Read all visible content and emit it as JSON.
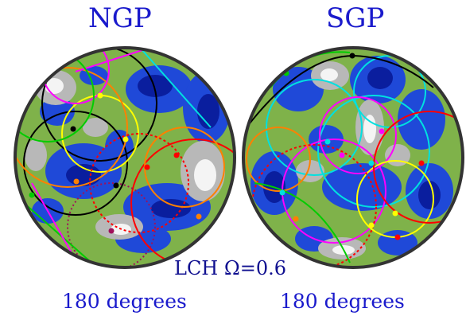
{
  "figure": {
    "panels": [
      {
        "title": "NGP",
        "extent": "180 degrees"
      },
      {
        "title": "SGP",
        "extent": "180 degrees"
      }
    ],
    "caption": "LCH Ω=0.6"
  },
  "colors": {
    "background": "#ffffff",
    "label_text": "#1a1acc",
    "map_blue": "#1f49d8",
    "map_deep_blue": "#0a1e9e",
    "map_green": "#7fb24a",
    "map_gray": "#b8b8b8",
    "map_white": "#f4f4f4",
    "disc_border": "#333333",
    "circle_colors": [
      "#ff00ff",
      "#00e0e0",
      "#ffff00",
      "#ff8000",
      "#00cc00",
      "#000000",
      "#ff0000",
      "#a0105a"
    ]
  }
}
